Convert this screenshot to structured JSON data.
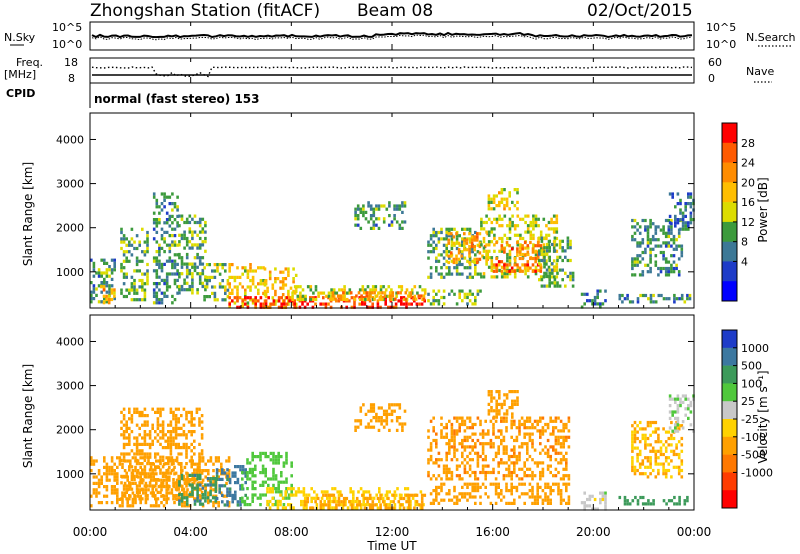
{
  "header": {
    "station": "Zhongshan Station (fitACF)",
    "beam": "Beam 08",
    "date": "02/Oct/2015"
  },
  "nsky_panel": {
    "left_label": "N.Sky",
    "left_ticks": [
      "10^5",
      "10^0"
    ],
    "right_ticks": [
      "10^5",
      "10^0"
    ],
    "right_label": "N.Search"
  },
  "freq_panel": {
    "left_label": "Freq.",
    "unit": "[MHz]",
    "left_ticks": [
      "18",
      "8"
    ],
    "right_ticks": [
      "60",
      "0"
    ],
    "right_label": "Nave"
  },
  "cpid_panel": {
    "label": "CPID",
    "text": "normal (fast stereo) 153"
  },
  "x_axis": {
    "label": "Time UT",
    "tick_labels": [
      "00:00",
      "04:00",
      "08:00",
      "12:00",
      "16:00",
      "20:00",
      "00:00"
    ]
  },
  "power_colorbar": {
    "label": "Power [dB]",
    "ticks": [
      "28",
      "24",
      "20",
      "16",
      "12",
      "8",
      "4"
    ],
    "colors": [
      "#ff0000",
      "#ff5a00",
      "#ff8c00",
      "#ffbe00",
      "#dcdc00",
      "#3c9a3c",
      "#3c7896",
      "#1e3cc8",
      "#0000ff"
    ]
  },
  "velocity_colorbar": {
    "label": "Velocity [m s⁻¹]",
    "ticks": [
      "1000",
      "500",
      "100",
      "25",
      "-25",
      "-100",
      "-500",
      "-1000"
    ],
    "colors": [
      "#1e3cc8",
      "#3c78a0",
      "#3c9a5a",
      "#50c83c",
      "#c8c8c8",
      "#ffd200",
      "#ffa000",
      "#ff7800",
      "#ff3c00",
      "#ff0000"
    ]
  },
  "chart_data": [
    {
      "type": "heatmap",
      "panel": "power",
      "ylabel": "Slant Range [km]",
      "y_ticks": [
        1000,
        2000,
        3000,
        4000
      ],
      "ylim": [
        180,
        4600
      ],
      "xlim": [
        0,
        24
      ],
      "color_key": "Power [dB]",
      "regions": [
        {
          "t": [
            0.0,
            1.0
          ],
          "r": [
            300,
            1300
          ],
          "v": 8
        },
        {
          "t": [
            0.3,
            1.0
          ],
          "r": [
            300,
            700
          ],
          "v": 20
        },
        {
          "t": [
            1.2,
            2.3
          ],
          "r": [
            400,
            2000
          ],
          "v": 10
        },
        {
          "t": [
            2.5,
            3.5
          ],
          "r": [
            300,
            2800
          ],
          "v": 8
        },
        {
          "t": [
            3.5,
            4.6
          ],
          "r": [
            500,
            2300
          ],
          "v": 10
        },
        {
          "t": [
            4.5,
            5.5
          ],
          "r": [
            400,
            1200
          ],
          "v": 12
        },
        {
          "t": [
            5.5,
            7.0
          ],
          "r": [
            200,
            1200
          ],
          "v": 16
        },
        {
          "t": [
            6.9,
            8.2
          ],
          "r": [
            200,
            1100
          ],
          "v": 18
        },
        {
          "t": [
            5.5,
            13.3
          ],
          "r": [
            200,
            450
          ],
          "v": 28
        },
        {
          "t": [
            8.0,
            13.3
          ],
          "r": [
            350,
            700
          ],
          "v": 14
        },
        {
          "t": [
            9.5,
            13.3
          ],
          "r": [
            400,
            560
          ],
          "v": 22
        },
        {
          "t": [
            10.5,
            12.5
          ],
          "r": [
            2000,
            2600
          ],
          "v": 8
        },
        {
          "t": [
            13.4,
            15.5
          ],
          "r": [
            300,
            600
          ],
          "v": 12
        },
        {
          "t": [
            13.4,
            15.5
          ],
          "r": [
            900,
            2000
          ],
          "v": 10
        },
        {
          "t": [
            14.2,
            15.8
          ],
          "r": [
            1200,
            1900
          ],
          "v": 20
        },
        {
          "t": [
            15.5,
            18.5
          ],
          "r": [
            900,
            2300
          ],
          "v": 14
        },
        {
          "t": [
            16.0,
            18.0
          ],
          "r": [
            1000,
            1700
          ],
          "v": 24
        },
        {
          "t": [
            17.8,
            19.2
          ],
          "r": [
            700,
            1800
          ],
          "v": 10
        },
        {
          "t": [
            15.8,
            17.0
          ],
          "r": [
            2400,
            2900
          ],
          "v": 16
        },
        {
          "t": [
            19.5,
            20.5
          ],
          "r": [
            200,
            600
          ],
          "v": 6
        },
        {
          "t": [
            21.0,
            23.8
          ],
          "r": [
            300,
            500
          ],
          "v": 8
        },
        {
          "t": [
            21.5,
            23.5
          ],
          "r": [
            900,
            2200
          ],
          "v": 8
        },
        {
          "t": [
            23.0,
            24.0
          ],
          "r": [
            2000,
            2800
          ],
          "v": 6
        }
      ]
    },
    {
      "type": "heatmap",
      "panel": "velocity",
      "ylabel": "Slant Range [km]",
      "y_ticks": [
        1000,
        2000,
        3000,
        4000
      ],
      "ylim": [
        180,
        4600
      ],
      "xlim": [
        0,
        24
      ],
      "color_key": "Velocity [m s⁻¹]",
      "regions": [
        {
          "t": [
            0.0,
            5.5
          ],
          "r": [
            300,
            1400
          ],
          "v": -300
        },
        {
          "t": [
            1.2,
            4.5
          ],
          "r": [
            400,
            2500
          ],
          "v": -200
        },
        {
          "t": [
            3.5,
            5.0
          ],
          "r": [
            300,
            1000
          ],
          "v": 400
        },
        {
          "t": [
            5.0,
            6.2
          ],
          "r": [
            300,
            1200
          ],
          "v": 700
        },
        {
          "t": [
            6.0,
            8.0
          ],
          "r": [
            300,
            1500
          ],
          "v": 60
        },
        {
          "t": [
            7.0,
            13.3
          ],
          "r": [
            200,
            700
          ],
          "v": -60
        },
        {
          "t": [
            8.5,
            13.3
          ],
          "r": [
            250,
            550
          ],
          "v": -150
        },
        {
          "t": [
            10.5,
            12.5
          ],
          "r": [
            2000,
            2600
          ],
          "v": -300
        },
        {
          "t": [
            13.4,
            19.0
          ],
          "r": [
            900,
            2300
          ],
          "v": -400
        },
        {
          "t": [
            13.5,
            19.0
          ],
          "r": [
            300,
            800
          ],
          "v": -300
        },
        {
          "t": [
            15.8,
            17.0
          ],
          "r": [
            2300,
            2900
          ],
          "v": -300
        },
        {
          "t": [
            19.5,
            20.5
          ],
          "r": [
            200,
            600
          ],
          "v": 0
        },
        {
          "t": [
            21.0,
            23.8
          ],
          "r": [
            300,
            500
          ],
          "v": 200
        },
        {
          "t": [
            21.5,
            23.5
          ],
          "r": [
            900,
            2200
          ],
          "v": -100
        },
        {
          "t": [
            23.0,
            24.0
          ],
          "r": [
            2000,
            2800
          ],
          "v": 10
        }
      ]
    }
  ]
}
